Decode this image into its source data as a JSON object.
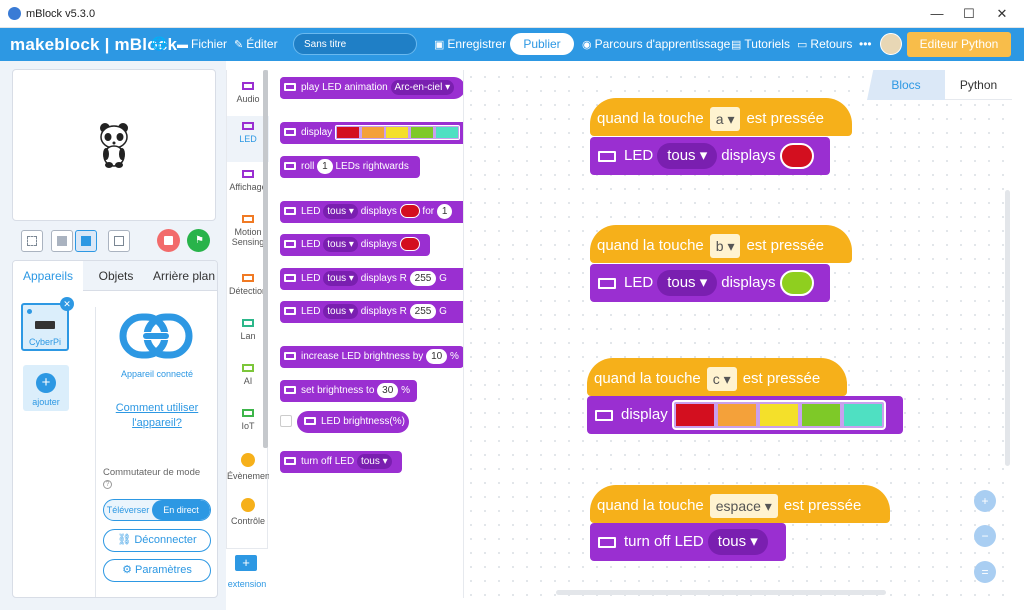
{
  "window": {
    "title": "mBlock v5.3.0"
  },
  "menubar": {
    "brand": "makeblock | mBlock",
    "fichier": "Fichier",
    "editer": "Éditer",
    "project_name": "Sans titre",
    "enregistrer": "Enregistrer",
    "publier": "Publier",
    "parcours": "Parcours d'apprentissage",
    "tutoriels": "Tutoriels",
    "retours": "Retours",
    "more": "•••",
    "python_editor": "Editeur Python"
  },
  "left": {
    "tabs": [
      "Appareils",
      "Objets",
      "Arrière plan"
    ],
    "device_name": "CyberPi",
    "add_label": "ajouter",
    "connected_label": "Appareil connecté",
    "howto": "Comment utiliser l'appareil?",
    "mode_label": "Commutateur de mode",
    "mode_upload": "Téléverser",
    "mode_live": "En direct",
    "disconnect": "Déconnecter",
    "settings": "Paramètres"
  },
  "categories": [
    {
      "label": "Audio",
      "color": "#9a2fd1"
    },
    {
      "label": "LED",
      "color": "#9a2fd1"
    },
    {
      "label": "Affichage",
      "color": "#9a2fd1"
    },
    {
      "label": "Motion Sensing",
      "color": "#f07a24"
    },
    {
      "label": "Détection",
      "color": "#f07a24"
    },
    {
      "label": "Lan",
      "color": "#2cb78a"
    },
    {
      "label": "AI",
      "color": "#7cc63a"
    },
    {
      "label": "IoT",
      "color": "#3db54a"
    },
    {
      "label": "Évènemen",
      "color": "#f6b01a"
    },
    {
      "label": "Contrôle",
      "color": "#f6b01a"
    }
  ],
  "extension_label": "extension",
  "palette": {
    "b1": {
      "text": "play LED animation",
      "opt": "Arc-en-ciel ▾"
    },
    "b2": {
      "text": "display"
    },
    "b3": {
      "pre": "roll",
      "num": "1",
      "post": "LEDs rightwards"
    },
    "b4": {
      "pre": "LED",
      "opt": "tous ▾",
      "mid": "displays",
      "post": "for",
      "num": "1"
    },
    "b5": {
      "pre": "LED",
      "opt": "tous ▾",
      "mid": "displays"
    },
    "b6": {
      "pre": "LED",
      "opt": "tous ▾",
      "mid": "displays R",
      "num": "255",
      "post": "G"
    },
    "b7": {
      "pre": "LED",
      "opt": "tous ▾",
      "mid": "displays R",
      "num": "255",
      "post": "G"
    },
    "b8": {
      "pre": "increase LED brightness by",
      "num": "10",
      "post": "%"
    },
    "b9": {
      "pre": "set brightness to",
      "num": "30",
      "post": "%"
    },
    "b10": {
      "text": "LED brightness(%)"
    },
    "b11": {
      "pre": "turn off LED",
      "opt": "tous ▾"
    }
  },
  "view_tabs": {
    "blocs": "Blocs",
    "python": "Python"
  },
  "script1": {
    "when": "quand la touche",
    "key": "a ▾",
    "pressed": "est pressée",
    "led": "LED",
    "opt": "tous ▾",
    "displays": "displays",
    "color": "#d30f1f"
  },
  "script2": {
    "when": "quand la touche",
    "key": "b ▾",
    "pressed": "est pressée",
    "led": "LED",
    "opt": "tous ▾",
    "displays": "displays",
    "color": "#8fcf1f"
  },
  "script3": {
    "when": "quand la touche",
    "key": "c ▾",
    "pressed": "est pressée",
    "display": "display",
    "colors": [
      "#d30f1f",
      "#f4a13a",
      "#f4e02a",
      "#7ec928",
      "#4fe0c2"
    ]
  },
  "script4": {
    "when": "quand la touche",
    "key": "espace ▾",
    "pressed": "est pressée",
    "turnoff": "turn off LED",
    "opt": "tous ▾"
  },
  "zoom": {
    "in": "+",
    "out": "−",
    "reset": "="
  }
}
